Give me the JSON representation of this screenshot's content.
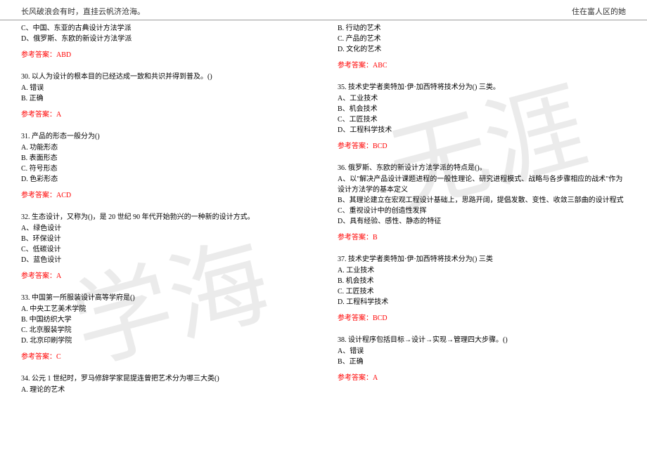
{
  "header": {
    "left": "长风破浪会有时，直挂云帆济沧海。",
    "right": "住在富人区的她"
  },
  "watermark": {
    "char1": "学海",
    "char2": "无涯"
  },
  "colors": {
    "text": "#000000",
    "answer": "#ff0000",
    "border": "#999999",
    "bg": "#ffffff",
    "watermark": "rgba(0,0,0,0.08)"
  },
  "leftCol": {
    "q29tail": {
      "optC": "C、中国、东亚的古典设计方法学派",
      "optD": "D、俄罗斯、东欧的新设计方法学派",
      "answer": "参考答案：ABD"
    },
    "q30": {
      "text": "30. 以人为设计的根本目的已经达成一致和共识并得到普及。()",
      "optA": "A. 错误",
      "optB": "B. 正确",
      "answer": "参考答案：A"
    },
    "q31": {
      "text": "31. 产品的形态一般分为()",
      "optA": "A. 功能形态",
      "optB": "B. 表面形态",
      "optC": "C. 符号形态",
      "optD": "D. 色彩形态",
      "answer": "参考答案：ACD"
    },
    "q32": {
      "text": "32. 生态设计，又称为()，是 20 世纪 90 年代开始勃兴的一种新的设计方式。",
      "optA": "A、绿色设计",
      "optB": "B、环保设计",
      "optC": "C、低碳设计",
      "optD": "D、蓝色设计",
      "answer": "参考答案：A"
    },
    "q33": {
      "text": "33. 中国第一所服装设计高等学府是()",
      "optA": "A. 中央工艺美术学院",
      "optB": "B. 中国纺织大学",
      "optC": "C. 北京服装学院",
      "optD": "D. 北京印刷学院",
      "answer": "参考答案：C"
    },
    "q34": {
      "text": "34. 公元 1 世纪时，罗马修辞学家昆提连曾把艺术分为哪三大类()",
      "optA": "A. 理论的艺术"
    }
  },
  "rightCol": {
    "q34tail": {
      "optB": "B. 行动的艺术",
      "optC": "C. 产品的艺术",
      "optD": "D. 文化的艺术",
      "answer": "参考答案：ABC"
    },
    "q35": {
      "text": "35. 技术史学者奥特加·伊·加西特将技术分为() 三类。",
      "optA": "A、工业技术",
      "optB": "B、机会技术",
      "optC": "C、工匠技术",
      "optD": "D、工程科学技术",
      "answer": "参考答案：BCD"
    },
    "q36": {
      "text": "36. 俄罗斯、东欧的新设计方法学派的特点是()。",
      "optA": "A、以\"解决产品设计课题进程的一般性理论、研究进程模式、战略与各步骤相应的战术\"作为设计方法学的基本定义",
      "optB": "B、其理论建立在宏观工程设计基础上，思路开阔，提倡发散、变性、收敛三部曲的设计程式",
      "optC": "C、重视设计中的创造性发挥",
      "optD": "D、具有经验、感性、静态的特征",
      "answer": "参考答案：B"
    },
    "q37": {
      "text": "37. 技术史学者奥特加·伊·加西特将技术分为() 三类",
      "optA": "A. 工业技术",
      "optB": "B. 机会技术",
      "optC": "C. 工匠技术",
      "optD": "D. 工程科学技术",
      "answer": "参考答案：BCD"
    },
    "q38": {
      "text": "38. 设计程序包括目标→设计→实现→管理四大步骤。()",
      "optA": "A、错误",
      "optB": "B、正确",
      "answer": "参考答案：A"
    }
  }
}
